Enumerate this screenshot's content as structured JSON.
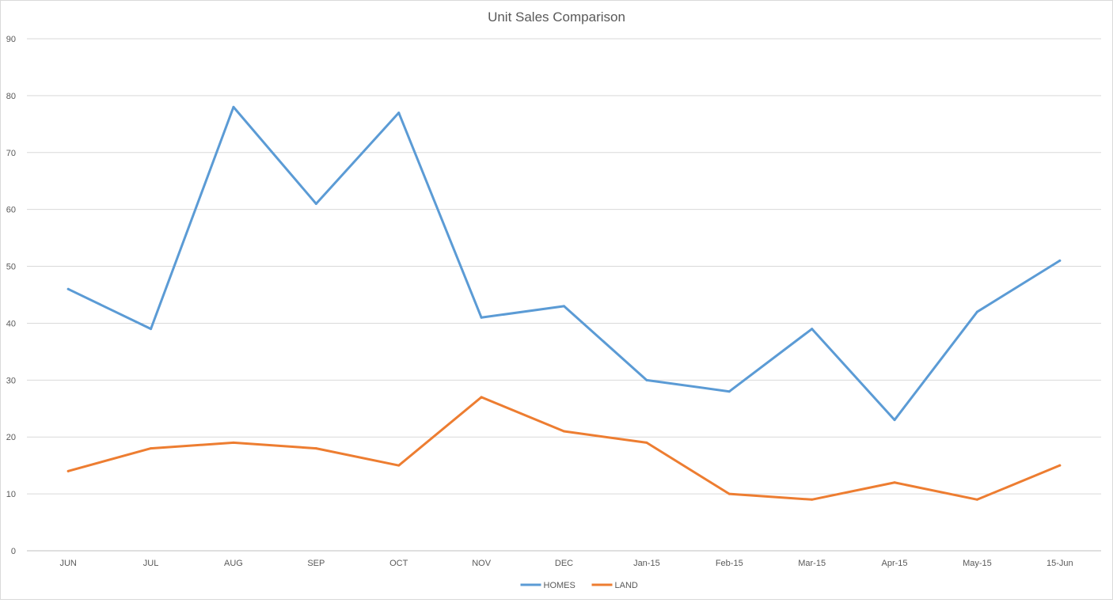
{
  "chart_data": {
    "type": "line",
    "title": "Unit Sales Comparison",
    "categories": [
      "JUN",
      "JUL",
      "AUG",
      "SEP",
      "OCT",
      "NOV",
      "DEC",
      "Jan-15",
      "Feb-15",
      "Mar-15",
      "Apr-15",
      "May-15",
      "15-Jun"
    ],
    "series": [
      {
        "name": "HOMES",
        "color": "#5b9bd5",
        "values": [
          46,
          39,
          78,
          61,
          77,
          41,
          43,
          30,
          28,
          39,
          23,
          42,
          51
        ]
      },
      {
        "name": "LAND",
        "color": "#ed7d31",
        "values": [
          14,
          18,
          19,
          18,
          15,
          27,
          21,
          19,
          10,
          9,
          12,
          9,
          15
        ]
      }
    ],
    "ylim": [
      0,
      90
    ],
    "yticks": [
      0,
      10,
      20,
      30,
      40,
      50,
      60,
      70,
      80,
      90
    ],
    "xlabel": "",
    "ylabel": "",
    "grid": true,
    "legend": "bottom"
  }
}
